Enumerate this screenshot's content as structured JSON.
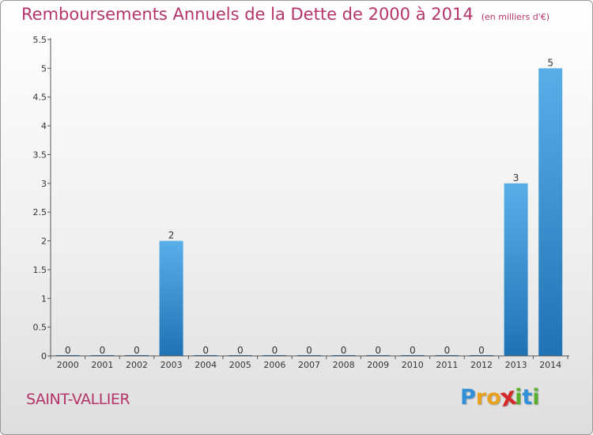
{
  "header": {
    "title": "Remboursements Annuels de la Dette de 2000 à 2014",
    "subtitle": "(en milliers d'€)"
  },
  "footer": {
    "commune": "SAINT-VALLIER",
    "logo_letters": [
      {
        "char": "P",
        "color": "#2f8fd8"
      },
      {
        "char": "r",
        "color": "#e8a020"
      },
      {
        "char": "o",
        "color": "#e8a020"
      },
      {
        "char": "x",
        "color": "#d42a2a"
      },
      {
        "char": "i",
        "color": "#5aae2e"
      },
      {
        "char": "t",
        "color": "#2f8fd8"
      },
      {
        "char": "i",
        "color": "#5aae2e"
      }
    ]
  },
  "chart_data": {
    "type": "bar",
    "title": "Remboursements Annuels de la Dette de 2000 à 2014",
    "subtitle": "(en milliers d'€)",
    "categories": [
      "2000",
      "2001",
      "2002",
      "2003",
      "2004",
      "2005",
      "2006",
      "2007",
      "2008",
      "2009",
      "2010",
      "2011",
      "2012",
      "2013",
      "2014"
    ],
    "values": [
      0,
      0,
      0,
      2,
      0,
      0,
      0,
      0,
      0,
      0,
      0,
      0,
      0,
      3,
      5
    ],
    "ylim": [
      0,
      5.5
    ],
    "yticks": [
      "0",
      "0.5",
      "1",
      "1.5",
      "2",
      "2.5",
      "3",
      "3.5",
      "4",
      "4.5",
      "5",
      "5.5"
    ],
    "grid": false,
    "legend": "none",
    "bar_color_top": "#5aaee8",
    "bar_color_bottom": "#1f73b5"
  }
}
